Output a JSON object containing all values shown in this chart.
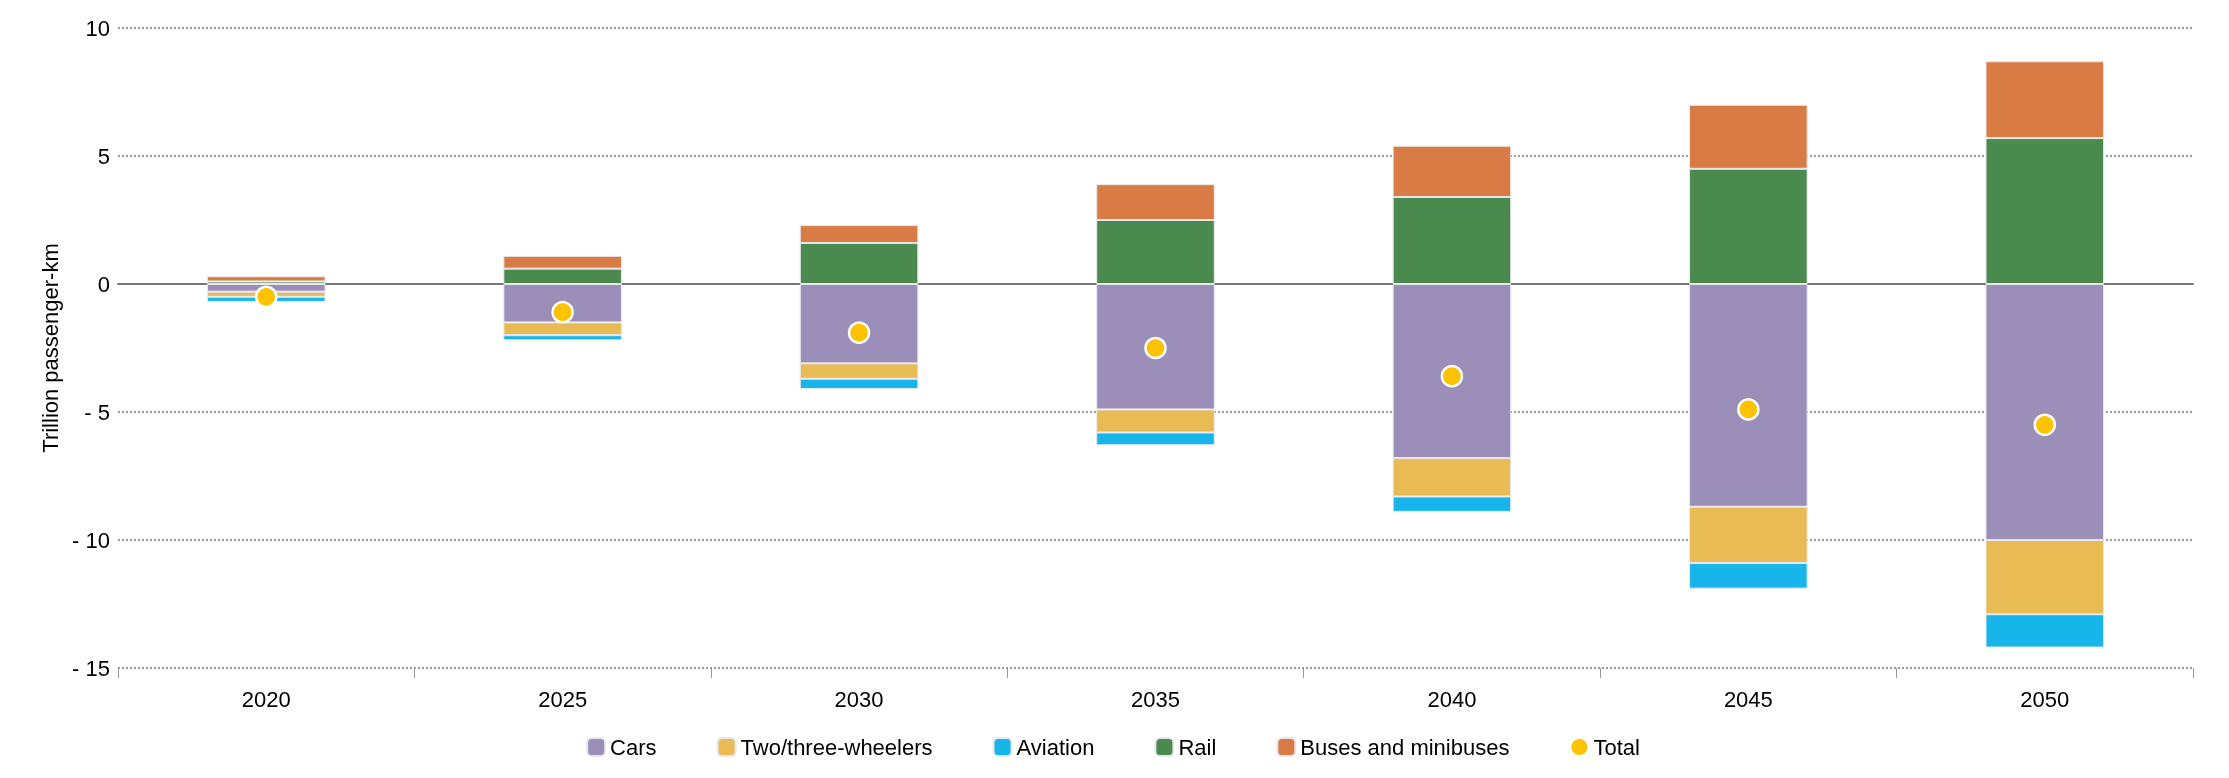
{
  "chart_data": {
    "type": "bar",
    "stacked": true,
    "ylabel": "Trillion passenger-km",
    "categories": [
      "2020",
      "2025",
      "2030",
      "2035",
      "2040",
      "2045",
      "2050"
    ],
    "ylim": [
      -15,
      10
    ],
    "yticks": [
      {
        "value": -15,
        "label": "- 15"
      },
      {
        "value": -10,
        "label": "- 10"
      },
      {
        "value": -5,
        "label": "- 5"
      },
      0,
      5,
      10
    ],
    "grid": "y",
    "legend": "bottom",
    "series": [
      {
        "name": "Cars",
        "color": "#9b8fba",
        "values": [
          -0.3,
          -1.5,
          -3.1,
          -4.9,
          -6.8,
          -8.7,
          -10.0
        ]
      },
      {
        "name": "Two/three-wheelers",
        "color": "#e8bb55",
        "values": [
          -0.2,
          -0.5,
          -0.6,
          -0.9,
          -1.5,
          -2.2,
          -2.9
        ]
      },
      {
        "name": "Aviation",
        "color": "#17b5e9",
        "values": [
          -0.2,
          -0.2,
          -0.4,
          -0.5,
          -0.6,
          -1.0,
          -1.3
        ]
      },
      {
        "name": "Rail",
        "color": "#4a8a4f",
        "values": [
          0.1,
          0.6,
          1.6,
          2.5,
          3.4,
          4.5,
          5.7
        ]
      },
      {
        "name": "Buses and minibuses",
        "color": "#d97b45",
        "values": [
          0.2,
          0.5,
          0.7,
          1.4,
          2.0,
          2.5,
          3.0
        ]
      },
      {
        "name": "Total",
        "type": "scatter",
        "marker": "circle",
        "color": "#fdc200",
        "values": [
          -0.5,
          -1.1,
          -1.9,
          -2.5,
          -3.6,
          -4.9,
          -5.5
        ]
      }
    ]
  }
}
